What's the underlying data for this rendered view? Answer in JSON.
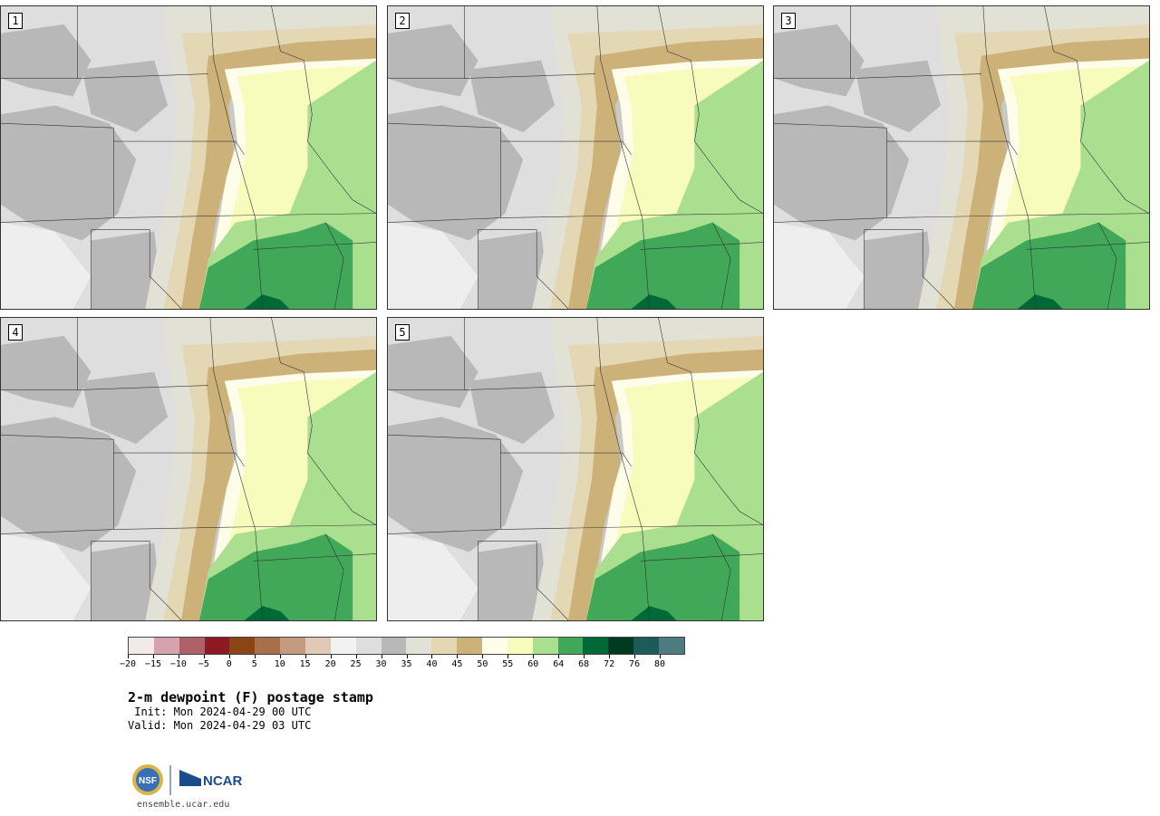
{
  "panels": [
    {
      "label": "1"
    },
    {
      "label": "2"
    },
    {
      "label": "3"
    },
    {
      "label": "4"
    },
    {
      "label": "5"
    }
  ],
  "colorbar": {
    "colors": [
      "#f3e8ea",
      "#d6a3ac",
      "#b06068",
      "#8b1a24",
      "#8a4513",
      "#a8704a",
      "#c49a80",
      "#e2c8b6",
      "#f2f2f2",
      "#dedede",
      "#b8b8b8",
      "#e2e1d6",
      "#e4d7b4",
      "#ccb278",
      "#fefdea",
      "#f7fcbc",
      "#aadf8f",
      "#41a85a",
      "#006a37",
      "#003a21",
      "#1d5a5a",
      "#4e7b80"
    ],
    "tick_labels": [
      "−20",
      "−15",
      "−10",
      "−5",
      "0",
      "5",
      "10",
      "15",
      "20",
      "25",
      "30",
      "35",
      "40",
      "45",
      "50",
      "55",
      "60",
      "64",
      "68",
      "72",
      "76",
      "80"
    ]
  },
  "title": "2-m dewpoint (F) postage stamp",
  "init_line": " Init: Mon 2024-04-29 00 UTC",
  "valid_line": "Valid: Mon 2024-04-29 03 UTC",
  "logo": {
    "nsf": "NSF",
    "ncar": "NCAR"
  },
  "website": "ensemble.ucar.edu",
  "colors": {
    "frame": "#333333",
    "grey_dark": "#b8b8b8",
    "grey_light": "#dedede",
    "khaki": "#e2e1d6",
    "tan": "#e4d7b4",
    "brown": "#ccb278",
    "cream": "#fefdea",
    "pale_yellow": "#f7fcbc",
    "light_green": "#aadf8f",
    "green": "#41a85a",
    "dark_green": "#006a37"
  }
}
